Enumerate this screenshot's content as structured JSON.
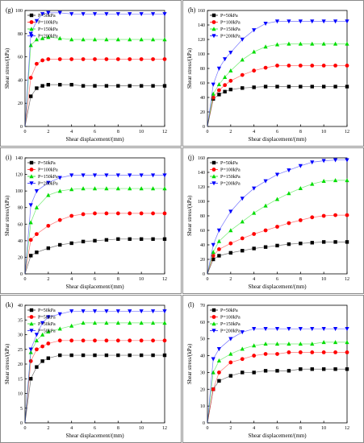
{
  "chart_data": [
    {
      "label": "(g)",
      "type": "scatter",
      "xlabel": "Shear displacement/(mm)",
      "ylabel": "Shear stress/(kPa)",
      "xlim": [
        0,
        12
      ],
      "ylim": [
        0,
        100
      ],
      "xticks": [
        0,
        2,
        4,
        6,
        8,
        10,
        12
      ],
      "yticks": [
        0,
        20,
        40,
        60,
        80,
        100
      ],
      "legend": "top-left",
      "x": [
        0.5,
        1,
        1.5,
        2,
        3,
        4,
        5,
        6,
        7,
        8,
        9,
        10,
        11,
        12
      ],
      "series": [
        {
          "name": "P=50kPa",
          "marker": "square",
          "color": "#000000",
          "values": [
            26,
            33,
            35,
            36,
            36,
            36,
            35,
            35,
            35,
            35,
            35,
            35,
            35,
            35
          ]
        },
        {
          "name": "P=100kPa",
          "marker": "circle",
          "color": "#ff0000",
          "values": [
            42,
            54,
            57,
            58,
            58,
            58,
            58,
            58,
            58,
            58,
            58,
            58,
            58,
            58
          ]
        },
        {
          "name": "P=150kPa",
          "marker": "triangle-up",
          "color": "#00dd00",
          "values": [
            70,
            75,
            76,
            77,
            76,
            75,
            75,
            75,
            75,
            75,
            75,
            75,
            75,
            75
          ]
        },
        {
          "name": "P=200kPa",
          "marker": "triangle-down",
          "color": "#0000ff",
          "values": [
            80,
            91,
            97,
            98,
            98,
            97,
            97,
            97,
            97,
            97,
            97,
            97,
            97,
            97
          ]
        }
      ]
    },
    {
      "label": "(h)",
      "type": "scatter",
      "xlabel": "Shear displacement/(mm)",
      "ylabel": "Shear stress/(kPa)",
      "xlim": [
        0,
        12
      ],
      "ylim": [
        0,
        160
      ],
      "xticks": [
        0,
        2,
        4,
        6,
        8,
        10,
        12
      ],
      "yticks": [
        0,
        20,
        40,
        60,
        80,
        100,
        120,
        140,
        160
      ],
      "legend": "top-left",
      "x": [
        0.5,
        1,
        1.5,
        2,
        3,
        4,
        5,
        6,
        7,
        8,
        9,
        10,
        11,
        12
      ],
      "series": [
        {
          "name": "P=50kPa",
          "marker": "square",
          "color": "#000000",
          "values": [
            38,
            44,
            48,
            51,
            53,
            54,
            55,
            55,
            55,
            55,
            55,
            55,
            55,
            55
          ]
        },
        {
          "name": "P=100kPa",
          "marker": "circle",
          "color": "#ff0000",
          "values": [
            40,
            50,
            57,
            63,
            71,
            77,
            81,
            84,
            84,
            84,
            84,
            84,
            84,
            84
          ]
        },
        {
          "name": "P=150kPa",
          "marker": "triangle-up",
          "color": "#00dd00",
          "values": [
            45,
            58,
            68,
            77,
            92,
            103,
            110,
            113,
            114,
            114,
            114,
            114,
            114,
            114
          ]
        },
        {
          "name": "P=200kPa",
          "marker": "triangle-down",
          "color": "#0000ff",
          "values": [
            58,
            80,
            93,
            102,
            120,
            133,
            142,
            145,
            145,
            145,
            145,
            145,
            145,
            145
          ]
        }
      ]
    },
    {
      "label": "(i)",
      "type": "scatter",
      "xlabel": "Shear displacement/(mm)",
      "ylabel": "Shear stress/(kPa)",
      "xlim": [
        0,
        12
      ],
      "ylim": [
        0,
        140
      ],
      "xticks": [
        0,
        2,
        4,
        6,
        8,
        10,
        12
      ],
      "yticks": [
        0,
        20,
        40,
        60,
        80,
        100,
        120,
        140
      ],
      "legend": "top-left",
      "x": [
        0.5,
        1,
        2,
        3,
        4,
        5,
        6,
        7,
        8,
        9,
        10,
        11,
        12
      ],
      "series": [
        {
          "name": "P=50kPa",
          "marker": "square",
          "color": "#000000",
          "values": [
            22,
            26,
            31,
            35,
            37,
            39,
            40,
            41,
            42,
            42,
            42,
            42,
            42
          ]
        },
        {
          "name": "P=100kPa",
          "marker": "circle",
          "color": "#ff0000",
          "values": [
            41,
            48,
            58,
            65,
            70,
            72,
            73,
            73,
            73,
            73,
            73,
            73,
            73
          ]
        },
        {
          "name": "P=150kPa",
          "marker": "triangle-up",
          "color": "#00dd00",
          "values": [
            62,
            80,
            95,
            100,
            102,
            103,
            103,
            103,
            103,
            103,
            103,
            103,
            103
          ]
        },
        {
          "name": "P=200kPa",
          "marker": "triangle-down",
          "color": "#0000ff",
          "values": [
            83,
            100,
            110,
            116,
            119,
            119,
            119,
            119,
            119,
            119,
            119,
            119,
            119
          ]
        }
      ]
    },
    {
      "label": "(j)",
      "type": "scatter",
      "xlabel": "Shear displacement/(mm)",
      "ylabel": "Shear stress/(kPa)",
      "xlim": [
        0,
        12
      ],
      "ylim": [
        0,
        160
      ],
      "xticks": [
        0,
        2,
        4,
        6,
        8,
        10,
        12
      ],
      "yticks": [
        0,
        20,
        40,
        60,
        80,
        100,
        120,
        140,
        160
      ],
      "legend": "top-left",
      "x": [
        0.5,
        1,
        2,
        3,
        4,
        5,
        6,
        7,
        8,
        9,
        10,
        11,
        12
      ],
      "series": [
        {
          "name": "P=50kPa",
          "marker": "square",
          "color": "#000000",
          "values": [
            20,
            25,
            29,
            32,
            35,
            37,
            39,
            41,
            42,
            43,
            44,
            44,
            44
          ]
        },
        {
          "name": "P=100kPa",
          "marker": "circle",
          "color": "#ff0000",
          "values": [
            25,
            34,
            42,
            49,
            55,
            60,
            65,
            70,
            74,
            78,
            80,
            81,
            81
          ]
        },
        {
          "name": "P=150kPa",
          "marker": "triangle-up",
          "color": "#00dd00",
          "values": [
            30,
            45,
            60,
            72,
            84,
            94,
            103,
            111,
            118,
            124,
            128,
            129,
            129
          ]
        },
        {
          "name": "P=200kPa",
          "marker": "triangle-down",
          "color": "#0000ff",
          "values": [
            40,
            60,
            86,
            104,
            118,
            128,
            137,
            143,
            149,
            154,
            156,
            157,
            157
          ]
        }
      ]
    },
    {
      "label": "(k)",
      "type": "scatter",
      "xlabel": "Shear displacement/(mm)",
      "ylabel": "Shear stress/(kPa)",
      "xlim": [
        0,
        12
      ],
      "ylim": [
        0,
        40
      ],
      "xticks": [
        0,
        2,
        4,
        6,
        8,
        10,
        12
      ],
      "yticks": [
        0,
        5,
        10,
        15,
        20,
        25,
        30,
        35,
        40
      ],
      "legend": "top-left",
      "x": [
        0.5,
        1,
        1.5,
        2,
        3,
        4,
        5,
        6,
        7,
        8,
        9,
        10,
        11,
        12
      ],
      "series": [
        {
          "name": "P=50kPa",
          "marker": "square",
          "color": "#000000",
          "values": [
            15,
            19,
            21,
            22,
            23,
            23,
            23,
            23,
            23,
            23,
            23,
            23,
            23,
            23
          ]
        },
        {
          "name": "P=50kPa",
          "marker": "circle",
          "color": "#ff0000",
          "values": [
            21,
            25,
            26,
            27,
            28,
            28,
            28,
            28,
            28,
            28,
            28,
            28,
            28,
            28
          ]
        },
        {
          "name": "P=50kPa",
          "marker": "triangle-up",
          "color": "#00dd00",
          "values": [
            24,
            28,
            30,
            31,
            32,
            33,
            34,
            34,
            34,
            34,
            34,
            34,
            34,
            34
          ]
        },
        {
          "name": "P=50kPa",
          "marker": "triangle-down",
          "color": "#0000ff",
          "values": [
            25,
            30,
            34,
            36,
            37,
            38,
            38,
            38,
            38,
            38,
            38,
            38,
            38,
            38
          ]
        }
      ]
    },
    {
      "label": "(l)",
      "type": "scatter",
      "xlabel": "Shear displacement/(mm)",
      "ylabel": "Shear stress/(kPa)",
      "xlim": [
        0,
        12
      ],
      "ylim": [
        0,
        70
      ],
      "xticks": [
        0,
        2,
        4,
        6,
        8,
        10,
        12
      ],
      "yticks": [
        0,
        10,
        20,
        30,
        40,
        50,
        60,
        70
      ],
      "legend": "top-left",
      "x": [
        0.5,
        1,
        2,
        3,
        4,
        5,
        6,
        7,
        8,
        9,
        10,
        11,
        12
      ],
      "series": [
        {
          "name": "P=50kPa",
          "marker": "square",
          "color": "#000000",
          "values": [
            20,
            25,
            28,
            30,
            30,
            31,
            31,
            31,
            32,
            32,
            32,
            32,
            32
          ]
        },
        {
          "name": "P=100kPa",
          "marker": "circle",
          "color": "#ff0000",
          "values": [
            20,
            30,
            36,
            38,
            40,
            41,
            41,
            42,
            42,
            42,
            42,
            42,
            42
          ]
        },
        {
          "name": "P=150kPa",
          "marker": "triangle-up",
          "color": "#00dd00",
          "values": [
            30,
            37,
            41,
            44,
            46,
            47,
            47,
            47,
            47,
            47,
            48,
            48,
            48
          ]
        },
        {
          "name": "P=200kPa",
          "marker": "triangle-down",
          "color": "#0000ff",
          "values": [
            38,
            44,
            50,
            54,
            56,
            56,
            56,
            56,
            56,
            56,
            56,
            56,
            56
          ]
        }
      ]
    }
  ]
}
